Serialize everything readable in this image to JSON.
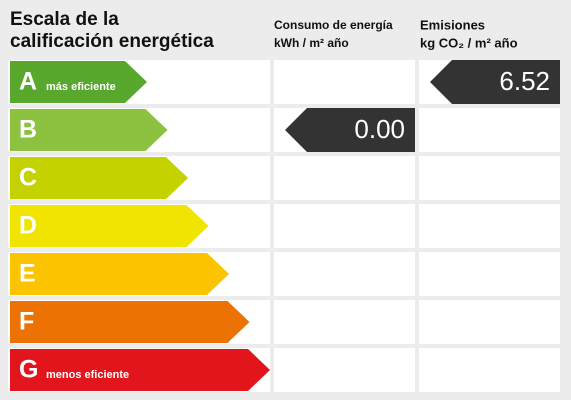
{
  "header": {
    "title_lines": [
      "Escala de la",
      "calificación energética"
    ],
    "consumption": {
      "line1": "Consumo de energía",
      "line2": "kWh / m² año"
    },
    "emissions": {
      "line1": "Emisiones",
      "line2": "kg CO₂ / m² año"
    }
  },
  "rows": [
    {
      "letter": "A",
      "note": "más eficiente",
      "color": "#58a82e"
    },
    {
      "letter": "B",
      "color": "#8cc23f"
    },
    {
      "letter": "C",
      "color": "#c4d200"
    },
    {
      "letter": "D",
      "color": "#f0e400"
    },
    {
      "letter": "E",
      "color": "#fbc300"
    },
    {
      "letter": "F",
      "color": "#ec7204"
    },
    {
      "letter": "G",
      "note": "menos eficiente",
      "color": "#e2151c"
    }
  ],
  "consumption": {
    "value": "0.00"
  },
  "emissions": {
    "value": "6.52"
  }
}
